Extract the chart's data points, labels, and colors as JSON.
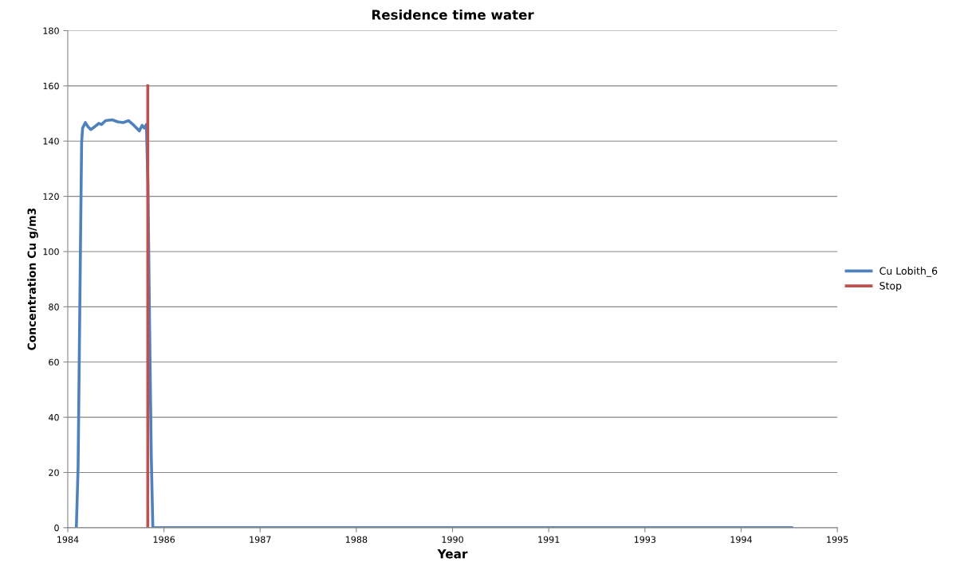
{
  "chart_data": {
    "type": "line",
    "title": "Residence time water",
    "xlabel": "Year",
    "ylabel": "Concentration Cu g/m3",
    "xlim": [
      "1984-12-01",
      "1995-09-19"
    ],
    "xticks": [
      {
        "value": "1984-12-01",
        "label": "1984"
      },
      {
        "value": "1986-04-08",
        "label": "1986"
      },
      {
        "value": "1987-08-14",
        "label": "1987"
      },
      {
        "value": "1988-12-19",
        "label": "1988"
      },
      {
        "value": "1990-04-26",
        "label": "1990"
      },
      {
        "value": "1991-09-01",
        "label": "1991"
      },
      {
        "value": "1993-01-06",
        "label": "1993"
      },
      {
        "value": "1994-05-14",
        "label": "1994"
      },
      {
        "value": "1995-09-19",
        "label": "1995"
      }
    ],
    "ylim": [
      0,
      180
    ],
    "yticks": [
      0,
      20,
      40,
      60,
      80,
      100,
      120,
      140,
      160,
      180
    ],
    "grid": "y",
    "legend": "right",
    "marker": "none",
    "line_style": "solid",
    "series": [
      {
        "name": "Cu Lobith_6",
        "color": "#4f81bd",
        "x": [
          "1985-01-14",
          "1985-01-23",
          "1985-01-29",
          "1985-02-04",
          "1985-02-10",
          "1985-02-15",
          "1985-03-01",
          "1985-03-15",
          "1985-03-29",
          "1985-04-18",
          "1985-05-09",
          "1985-05-23",
          "1985-06-13",
          "1985-07-17",
          "1985-08-14",
          "1985-09-11",
          "1985-10-09",
          "1985-11-05",
          "1985-12-03",
          "1985-12-17",
          "1985-12-28",
          "1986-01-08",
          "1986-01-16",
          "1986-01-24",
          "1986-02-02",
          "1986-02-10",
          "1995-01-28"
        ],
        "values": [
          0,
          22,
          61.5,
          101,
          139.3,
          144.7,
          146.7,
          145.2,
          144.2,
          145.2,
          146.4,
          146,
          147.4,
          147.7,
          147,
          146.7,
          147.4,
          145.7,
          143.7,
          145.7,
          144.7,
          146,
          124.5,
          75.3,
          26,
          0,
          0
        ]
      },
      {
        "name": "Stop",
        "color": "#c0504d",
        "x": [
          "1986-01-15",
          "1986-01-15"
        ],
        "values": [
          0,
          160
        ]
      }
    ]
  }
}
